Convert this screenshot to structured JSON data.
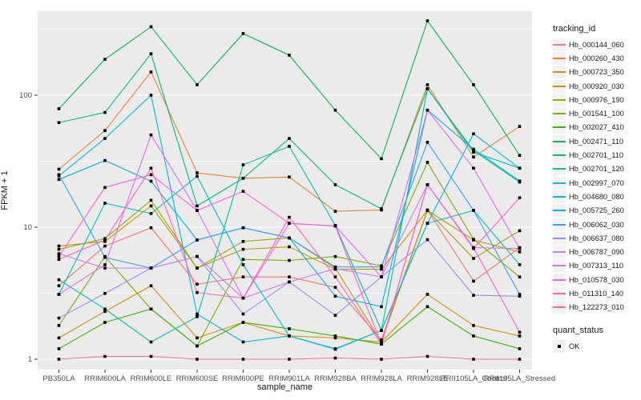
{
  "figure": {
    "x_axis_title": "sample_name",
    "y_axis_title": "FPKM + 1",
    "tracking_legend_title": "tracking_id",
    "quant_legend_title": "quant_status",
    "quant_legend_value": "OK",
    "panel_background": "#EBEBEB",
    "gridline_color": "#FFFFFF",
    "axis_text_color": "#4D4D4D",
    "marker_color": "#000000"
  },
  "chart_data": {
    "type": "line",
    "title": "",
    "xlabel": "sample_name",
    "ylabel": "FPKM + 1",
    "y_scale": "log10",
    "y_ticks": [
      1,
      10,
      100
    ],
    "ylim": [
      0.85,
      435
    ],
    "grid": "white major gridlines at 1,10,100 and minor at half-decades on gray panel",
    "legend_position": "right",
    "marker": "black filled square at every point (quant_status = OK)",
    "categories": [
      "PB350LA",
      "RRIM600LA",
      "RRIM600LE",
      "RRIM600SE",
      "RRIM600PE",
      "RRIM901LA",
      "RRIM928BA",
      "RRIM928LA",
      "RRIM928LE",
      "RRII105LA_Control",
      "RRII105LA_Stressed"
    ],
    "series": [
      {
        "name": "Hb_000144_060",
        "color": "#F8766D",
        "values": [
          3.6,
          7.2,
          9.9,
          3.7,
          4.2,
          4.2,
          3.5,
          1.4,
          13.5,
          3.9,
          7.0
        ]
      },
      {
        "name": "Hb_000260_430",
        "color": "#EA8331",
        "values": [
          27.5,
          54,
          150,
          25.8,
          23.5,
          24,
          13.2,
          13.5,
          120,
          34,
          58
        ]
      },
      {
        "name": "Hb_000723_350",
        "color": "#D89000",
        "values": [
          1.45,
          2.3,
          3.6,
          1.45,
          1.9,
          1.5,
          1.45,
          1.35,
          3.1,
          1.8,
          1.5
        ]
      },
      {
        "name": "Hb_000920_030",
        "color": "#C09B00",
        "values": [
          7.2,
          7.8,
          14.5,
          4.9,
          6.8,
          7.1,
          4.8,
          4.8,
          13.4,
          8.0,
          6.5
        ]
      },
      {
        "name": "Hb_000976_190",
        "color": "#A3A500",
        "values": [
          6.8,
          8.2,
          16,
          4.9,
          7.8,
          8.3,
          4.9,
          1.35,
          13.4,
          5.8,
          9.4
        ]
      },
      {
        "name": "Hb_001541_100",
        "color": "#7CAE00",
        "values": [
          1.8,
          6.0,
          2.4,
          1.26,
          5.7,
          5.6,
          6.0,
          5.1,
          31,
          8.1,
          4.2
        ]
      },
      {
        "name": "Hb_002027_410",
        "color": "#39B600",
        "values": [
          1.2,
          1.9,
          2.4,
          1.26,
          1.9,
          1.7,
          1.5,
          1.3,
          2.5,
          1.5,
          1.2
        ]
      },
      {
        "name": "Hb_002471_110",
        "color": "#00BB4E",
        "values": [
          79,
          187,
          330,
          120,
          293,
          201,
          77,
          33,
          366,
          120,
          35
        ]
      },
      {
        "name": "Hb_002701_110",
        "color": "#00BF7D",
        "values": [
          62,
          74,
          206,
          14.5,
          23.5,
          47,
          21,
          13.8,
          112,
          38,
          22
        ]
      },
      {
        "name": "Hb_002701_120",
        "color": "#00C1A3",
        "values": [
          4.0,
          2.4,
          1.35,
          2.1,
          29.7,
          41,
          10.3,
          1.65,
          112,
          37,
          28
        ]
      },
      {
        "name": "Hb_002997_070",
        "color": "#00BFC4",
        "values": [
          3.1,
          15.2,
          12.7,
          24.3,
          5.2,
          1.5,
          1.2,
          1.65,
          10.7,
          13.4,
          5.2
        ]
      },
      {
        "name": "Hb_004680_080",
        "color": "#00BAE0",
        "values": [
          24.5,
          47,
          100,
          2.2,
          1.35,
          1.5,
          1.19,
          1.65,
          10.7,
          51,
          28
        ]
      },
      {
        "name": "Hb_005725_260",
        "color": "#00B0F6",
        "values": [
          23,
          32,
          22.3,
          8.0,
          9.9,
          8.3,
          3.0,
          2.5,
          77,
          39,
          22.4
        ]
      },
      {
        "name": "Hb_006062_030",
        "color": "#35A2FF",
        "values": [
          25,
          5.9,
          4.9,
          8.0,
          9.9,
          8.3,
          5.0,
          5.0,
          44,
          13.4,
          3.1
        ]
      },
      {
        "name": "Hb_006637_080",
        "color": "#9590FF",
        "values": [
          2.05,
          3.15,
          4.9,
          6.0,
          2.2,
          3.85,
          2.15,
          4.2,
          8.05,
          3.05,
          3.0
        ]
      },
      {
        "name": "Hb_006787_090",
        "color": "#C77CFF",
        "values": [
          6.3,
          4.9,
          4.9,
          6.0,
          2.9,
          3.85,
          4.85,
          4.2,
          21,
          7.0,
          6.9
        ]
      },
      {
        "name": "Hb_007313_110",
        "color": "#E76BF3",
        "values": [
          3.1,
          5.2,
          50,
          13.4,
          2.9,
          10.7,
          10.2,
          4.2,
          77,
          28,
          6.9
        ]
      },
      {
        "name": "Hb_010578_030",
        "color": "#FA62DB",
        "values": [
          6.0,
          20,
          25,
          13.4,
          18.7,
          10.7,
          10.2,
          1.3,
          21,
          7.0,
          1.6
        ]
      },
      {
        "name": "Hb_011310_140",
        "color": "#FF62BC",
        "values": [
          5.7,
          8.0,
          28,
          3.2,
          2.9,
          11.9,
          4.2,
          1.3,
          21,
          6.9,
          16.7
        ]
      },
      {
        "name": "Hb_122273_010",
        "color": "#FF6A98",
        "values": [
          1.0,
          1.05,
          1.05,
          1.0,
          1.0,
          1.0,
          1.02,
          1.0,
          1.05,
          1.0,
          1.0
        ]
      }
    ]
  }
}
